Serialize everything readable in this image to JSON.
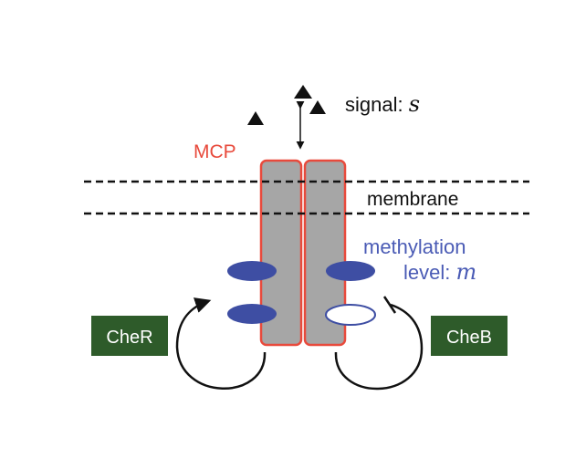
{
  "signal": {
    "text": "signal: ",
    "var": "s"
  },
  "mcp_label": "MCP",
  "membrane_label": "membrane",
  "methylation": {
    "line1": "methylation",
    "line2": "level: ",
    "var": "m"
  },
  "cheR_label": "CheR",
  "cheB_label": "CheB",
  "colors": {
    "receptor_fill": "#a6a6a6",
    "receptor_outline": "#e84a3c",
    "mcp_text": "#e84a3c",
    "methyl_blue": "#3e4ea3",
    "methyl_text": "#4a5bb5",
    "enzyme_box": "#2e5b2a",
    "enzyme_text": "#ffffff",
    "ink": "#111111"
  },
  "icons": [
    "signal-ligand-icon",
    "methyl-group-icon",
    "feedback-arrow-icon",
    "inhibition-arrow-icon"
  ]
}
